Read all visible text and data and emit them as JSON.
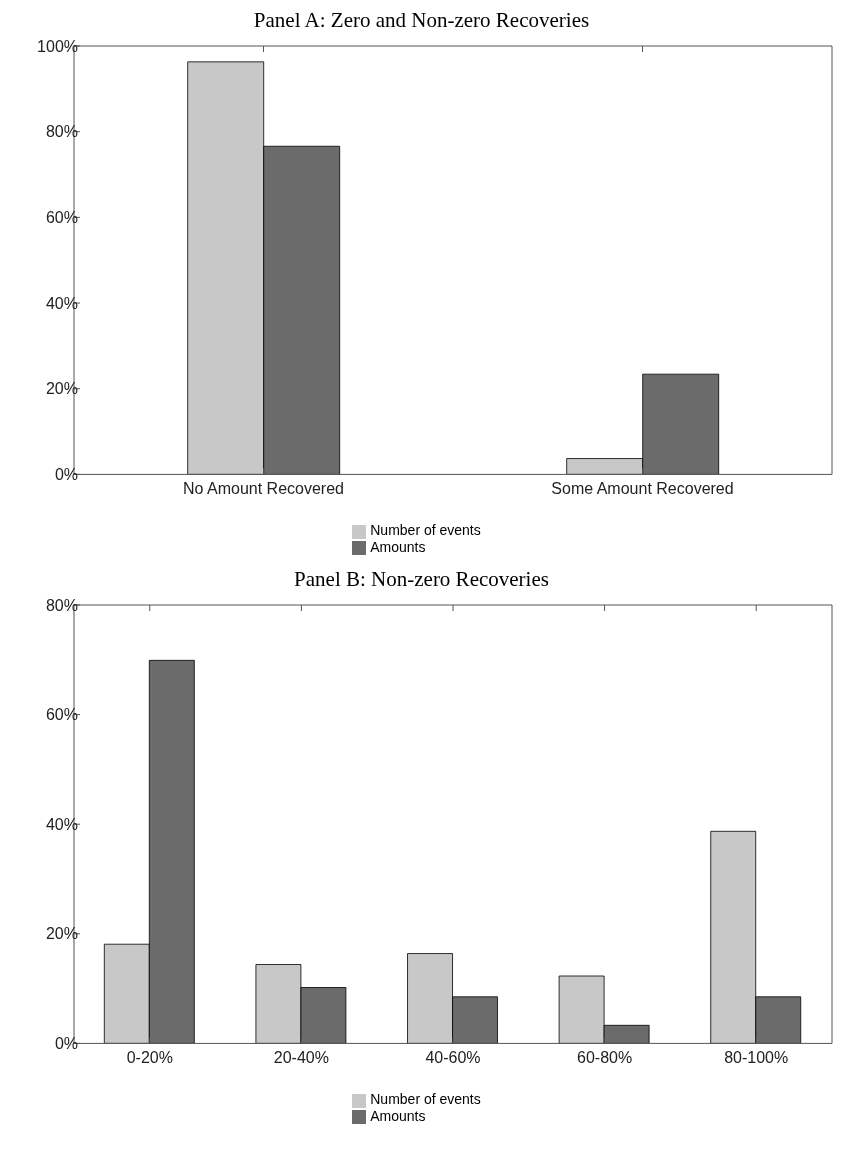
{
  "chart_data": [
    {
      "type": "bar",
      "title": "Panel A: Zero and Non-zero Recoveries",
      "categories": [
        "No Amount Recovered",
        "Some Amount Recovered"
      ],
      "series": [
        {
          "name": "Number of events",
          "color": "#c8c8c8",
          "values": [
            96.3,
            3.7
          ]
        },
        {
          "name": "Amounts",
          "color": "#6b6b6b",
          "values": [
            76.6,
            23.4
          ]
        }
      ],
      "ylim": [
        0,
        100
      ],
      "yticks": [
        {
          "value": 0,
          "label": "0%"
        },
        {
          "value": 20,
          "label": "20%"
        },
        {
          "value": 40,
          "label": "40%"
        },
        {
          "value": 60,
          "label": "60%"
        },
        {
          "value": 80,
          "label": "80%"
        },
        {
          "value": 100,
          "label": "100%"
        }
      ],
      "grid": false,
      "legend": "bottom"
    },
    {
      "type": "bar",
      "title": "Panel B: Non-zero Recoveries",
      "categories": [
        "0-20%",
        "20-40%",
        "40-60%",
        "60-80%",
        "80-100%"
      ],
      "series": [
        {
          "name": "Number of events",
          "color": "#c8c8c8",
          "values": [
            18.1,
            14.4,
            16.4,
            12.3,
            38.7
          ]
        },
        {
          "name": "Amounts",
          "color": "#6b6b6b",
          "values": [
            69.9,
            10.2,
            8.5,
            3.3,
            8.5
          ]
        }
      ],
      "ylim": [
        0,
        80
      ],
      "yticks": [
        {
          "value": 0,
          "label": "0%"
        },
        {
          "value": 20,
          "label": "20%"
        },
        {
          "value": 40,
          "label": "40%"
        },
        {
          "value": 60,
          "label": "60%"
        },
        {
          "value": 80,
          "label": "80%"
        }
      ],
      "grid": false,
      "legend": "bottom"
    }
  ]
}
